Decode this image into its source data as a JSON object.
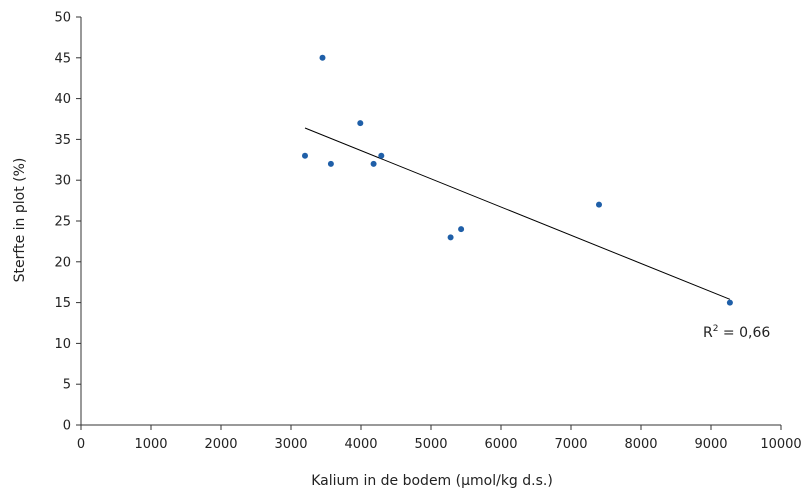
{
  "chart_data": {
    "type": "scatter",
    "title": "",
    "xlabel": "Kalium in de bodem (µmol/kg d.s.)",
    "ylabel": "Sterfte in plot (%)",
    "xlim": [
      0,
      10000
    ],
    "ylim": [
      0,
      50
    ],
    "xticks": [
      0,
      1000,
      2000,
      3000,
      4000,
      5000,
      6000,
      7000,
      8000,
      9000,
      10000
    ],
    "yticks": [
      0,
      5,
      10,
      15,
      20,
      25,
      30,
      35,
      40,
      45,
      50
    ],
    "grid": false,
    "series": [
      {
        "color": "#1f5fa8",
        "points": [
          {
            "x": 3200,
            "y": 33
          },
          {
            "x": 3450,
            "y": 45
          },
          {
            "x": 3570,
            "y": 32
          },
          {
            "x": 3990,
            "y": 37
          },
          {
            "x": 4180,
            "y": 32
          },
          {
            "x": 4290,
            "y": 33
          },
          {
            "x": 5280,
            "y": 23
          },
          {
            "x": 5430,
            "y": 24
          },
          {
            "x": 7400,
            "y": 27
          },
          {
            "x": 9270,
            "y": 15
          }
        ]
      }
    ],
    "trendline": {
      "type": "linear",
      "x": [
        3200,
        9270
      ],
      "y": [
        36.4,
        15.4
      ],
      "color": "#000000"
    },
    "annotation": {
      "r_label": "R",
      "r_exponent": "2",
      "r_value": " = 0,66",
      "anchor": {
        "x": 9000,
        "y": 11
      }
    }
  }
}
